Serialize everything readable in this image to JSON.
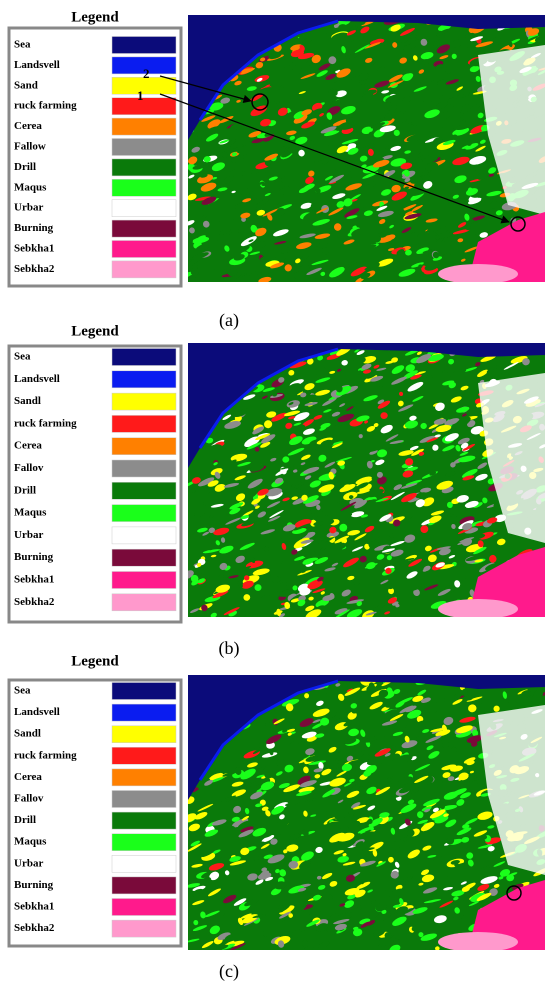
{
  "panels": [
    {
      "legend_title": "Legend",
      "caption": "(a)",
      "annotations": [
        "2",
        "1"
      ],
      "legend": [
        {
          "label": "Sea",
          "color": "#0b0b7a"
        },
        {
          "label": "Landsvell",
          "color": "#0a1cf0"
        },
        {
          "label": "Sand",
          "color": "#ffff00"
        },
        {
          "label": "ruck farming",
          "color": "#ff1a1a"
        },
        {
          "label": "Cerea",
          "color": "#ff8000"
        },
        {
          "label": "Fallow",
          "color": "#8c8c8c"
        },
        {
          "label": "Drill",
          "color": "#0a7a0a"
        },
        {
          "label": "Maqus",
          "color": "#1aff1a"
        },
        {
          "label": "Urbar",
          "color": "#ffffff"
        },
        {
          "label": "Burning",
          "color": "#7a0a3a"
        },
        {
          "label": "Sebkha1",
          "color": "#ff1a8c"
        },
        {
          "label": "Sebkha2",
          "color": "#ff99cc"
        }
      ]
    },
    {
      "legend_title": "Legend",
      "caption": "(b)",
      "legend": [
        {
          "label": "Sea",
          "color": "#0b0b7a"
        },
        {
          "label": "Landsvell",
          "color": "#0a1cf0"
        },
        {
          "label": "Sandl",
          "color": "#ffff00"
        },
        {
          "label": "ruck farming",
          "color": "#ff1a1a"
        },
        {
          "label": "Cerea",
          "color": "#ff8000"
        },
        {
          "label": "Fallov",
          "color": "#8c8c8c"
        },
        {
          "label": "Drill",
          "color": "#0a7a0a"
        },
        {
          "label": "Maqus",
          "color": "#1aff1a"
        },
        {
          "label": "Urbar",
          "color": "#ffffff"
        },
        {
          "label": "Burning",
          "color": "#7a0a3a"
        },
        {
          "label": "Sebkha1",
          "color": "#ff1a8c"
        },
        {
          "label": "Sebkha2",
          "color": "#ff99cc"
        }
      ]
    },
    {
      "legend_title": "Legend",
      "caption": "(c)",
      "legend": [
        {
          "label": "Sea",
          "color": "#0b0b7a"
        },
        {
          "label": "Landsvell",
          "color": "#0a1cf0"
        },
        {
          "label": "Sandl",
          "color": "#ffff00"
        },
        {
          "label": "ruck farming",
          "color": "#ff1a1a"
        },
        {
          "label": "Cerea",
          "color": "#ff8000"
        },
        {
          "label": "Fallov",
          "color": "#8c8c8c"
        },
        {
          "label": "Drill",
          "color": "#0a7a0a"
        },
        {
          "label": "Maqus",
          "color": "#1aff1a"
        },
        {
          "label": "Urbar",
          "color": "#ffffff"
        },
        {
          "label": "Burning",
          "color": "#7a0a3a"
        },
        {
          "label": "Sebkha1",
          "color": "#ff1a8c"
        },
        {
          "label": "Sebkha2",
          "color": "#ff99cc"
        }
      ]
    }
  ]
}
